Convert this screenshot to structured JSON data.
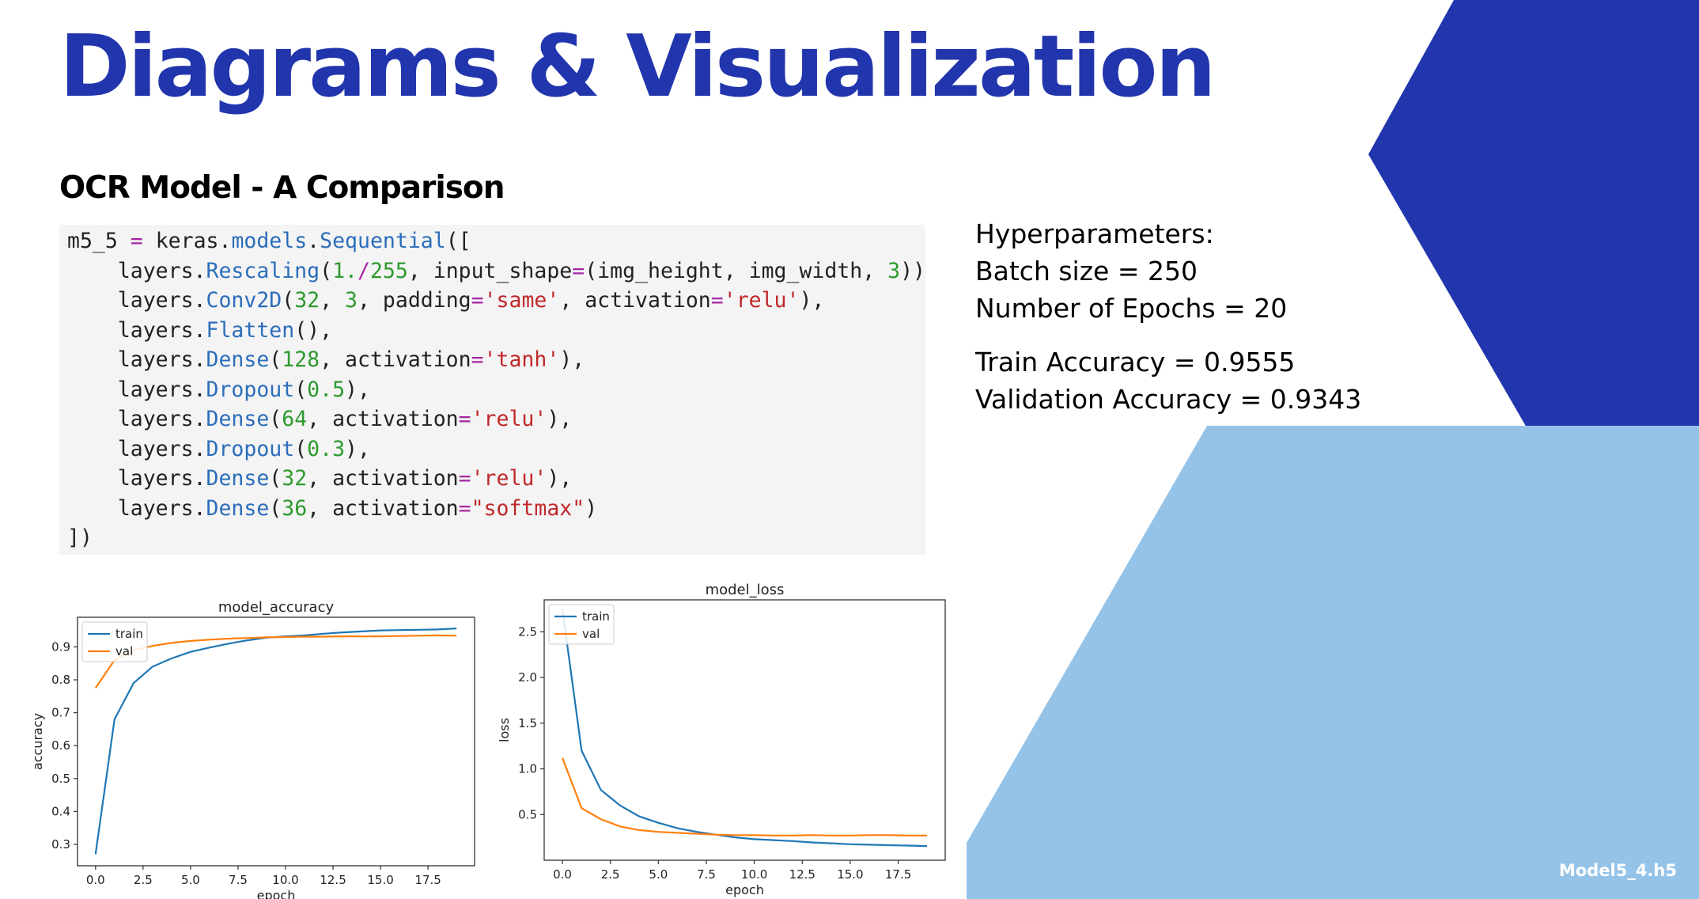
{
  "slide": {
    "title": "Diagrams & Visualization",
    "subtitle": "OCR Model - A Comparison",
    "filename": "Model5_4.h5",
    "colors": {
      "dark_blue": "#2135ad",
      "light_blue": "#95c3e8"
    }
  },
  "code": {
    "lines": [
      [
        {
          "t": "m5_5 ",
          "c": "var"
        },
        {
          "t": "=",
          "c": "op"
        },
        {
          "t": " keras.",
          "c": "mod"
        },
        {
          "t": "models",
          "c": "attr"
        },
        {
          "t": ".",
          "c": "punc"
        },
        {
          "t": "Sequential",
          "c": "attr"
        },
        {
          "t": "([",
          "c": "punc"
        }
      ],
      [
        {
          "t": "    layers.",
          "c": "mod"
        },
        {
          "t": "Rescaling",
          "c": "attr"
        },
        {
          "t": "(",
          "c": "punc"
        },
        {
          "t": "1.",
          "c": "num"
        },
        {
          "t": "/",
          "c": "op"
        },
        {
          "t": "255",
          "c": "num"
        },
        {
          "t": ", input_shape",
          "c": "plain"
        },
        {
          "t": "=",
          "c": "op"
        },
        {
          "t": "(img_height, img_width, ",
          "c": "plain"
        },
        {
          "t": "3",
          "c": "num"
        },
        {
          "t": ")),",
          "c": "punc"
        }
      ],
      [
        {
          "t": "    layers.",
          "c": "mod"
        },
        {
          "t": "Conv2D",
          "c": "attr"
        },
        {
          "t": "(",
          "c": "punc"
        },
        {
          "t": "32",
          "c": "num"
        },
        {
          "t": ", ",
          "c": "plain"
        },
        {
          "t": "3",
          "c": "num"
        },
        {
          "t": ", padding",
          "c": "plain"
        },
        {
          "t": "=",
          "c": "op"
        },
        {
          "t": "'same'",
          "c": "str"
        },
        {
          "t": ", activation",
          "c": "plain"
        },
        {
          "t": "=",
          "c": "op"
        },
        {
          "t": "'relu'",
          "c": "str"
        },
        {
          "t": "),",
          "c": "punc"
        }
      ],
      [
        {
          "t": "    layers.",
          "c": "mod"
        },
        {
          "t": "Flatten",
          "c": "attr"
        },
        {
          "t": "(),",
          "c": "punc"
        }
      ],
      [
        {
          "t": "    layers.",
          "c": "mod"
        },
        {
          "t": "Dense",
          "c": "attr"
        },
        {
          "t": "(",
          "c": "punc"
        },
        {
          "t": "128",
          "c": "num"
        },
        {
          "t": ", activation",
          "c": "plain"
        },
        {
          "t": "=",
          "c": "op"
        },
        {
          "t": "'tanh'",
          "c": "str"
        },
        {
          "t": "),",
          "c": "punc"
        }
      ],
      [
        {
          "t": "    layers.",
          "c": "mod"
        },
        {
          "t": "Dropout",
          "c": "attr"
        },
        {
          "t": "(",
          "c": "punc"
        },
        {
          "t": "0.5",
          "c": "num"
        },
        {
          "t": "),",
          "c": "punc"
        }
      ],
      [
        {
          "t": "    layers.",
          "c": "mod"
        },
        {
          "t": "Dense",
          "c": "attr"
        },
        {
          "t": "(",
          "c": "punc"
        },
        {
          "t": "64",
          "c": "num"
        },
        {
          "t": ", activation",
          "c": "plain"
        },
        {
          "t": "=",
          "c": "op"
        },
        {
          "t": "'relu'",
          "c": "str"
        },
        {
          "t": "),",
          "c": "punc"
        }
      ],
      [
        {
          "t": "    layers.",
          "c": "mod"
        },
        {
          "t": "Dropout",
          "c": "attr"
        },
        {
          "t": "(",
          "c": "punc"
        },
        {
          "t": "0.3",
          "c": "num"
        },
        {
          "t": "),",
          "c": "punc"
        }
      ],
      [
        {
          "t": "    layers.",
          "c": "mod"
        },
        {
          "t": "Dense",
          "c": "attr"
        },
        {
          "t": "(",
          "c": "punc"
        },
        {
          "t": "32",
          "c": "num"
        },
        {
          "t": ", activation",
          "c": "plain"
        },
        {
          "t": "=",
          "c": "op"
        },
        {
          "t": "'relu'",
          "c": "str"
        },
        {
          "t": "),",
          "c": "punc"
        }
      ],
      [
        {
          "t": "    layers.",
          "c": "mod"
        },
        {
          "t": "Dense",
          "c": "attr"
        },
        {
          "t": "(",
          "c": "punc"
        },
        {
          "t": "36",
          "c": "num"
        },
        {
          "t": ", activation",
          "c": "plain"
        },
        {
          "t": "=",
          "c": "op"
        },
        {
          "t": "\"softmax\"",
          "c": "str"
        },
        {
          "t": ")",
          "c": "punc"
        }
      ],
      [
        {
          "t": "])",
          "c": "punc"
        }
      ]
    ]
  },
  "info": {
    "hyperparameters_label": "Hyperparameters:",
    "batch_size": "Batch size = 250",
    "epochs": "Number of Epochs = 20",
    "train_accuracy": "Train Accuracy = 0.9555",
    "val_accuracy": "Validation Accuracy = 0.9343"
  },
  "chart_data": [
    {
      "type": "line",
      "title": "model_accuracy",
      "xlabel": "epoch",
      "ylabel": "accuracy",
      "xlim": [
        -0.95,
        19.95
      ],
      "ylim": [
        0.235,
        0.99
      ],
      "xticks": [
        0.0,
        2.5,
        5.0,
        7.5,
        10.0,
        12.5,
        15.0,
        17.5
      ],
      "xtick_labels": [
        "0.0",
        "2.5",
        "5.0",
        "7.5",
        "10.0",
        "12.5",
        "15.0",
        "17.5"
      ],
      "yticks": [
        0.3,
        0.4,
        0.5,
        0.6,
        0.7,
        0.8,
        0.9
      ],
      "ytick_labels": [
        "0.3",
        "0.4",
        "0.5",
        "0.6",
        "0.7",
        "0.8",
        "0.9"
      ],
      "legend": "upper-left",
      "x": [
        0,
        1,
        2,
        3,
        4,
        5,
        6,
        7,
        8,
        9,
        10,
        11,
        12,
        13,
        14,
        15,
        16,
        17,
        18,
        19
      ],
      "series": [
        {
          "name": "train",
          "color": "#1f77b4",
          "values": [
            0.27,
            0.68,
            0.79,
            0.84,
            0.865,
            0.885,
            0.898,
            0.91,
            0.92,
            0.928,
            0.932,
            0.935,
            0.94,
            0.944,
            0.947,
            0.95,
            0.951,
            0.952,
            0.953,
            0.956
          ]
        },
        {
          "name": "val",
          "color": "#ff7f0e",
          "values": [
            0.775,
            0.86,
            0.89,
            0.903,
            0.912,
            0.918,
            0.922,
            0.925,
            0.927,
            0.929,
            0.93,
            0.931,
            0.931,
            0.932,
            0.932,
            0.932,
            0.933,
            0.934,
            0.935,
            0.934
          ]
        }
      ]
    },
    {
      "type": "line",
      "title": "model_loss",
      "xlabel": "epoch",
      "ylabel": "loss",
      "xlim": [
        -0.95,
        19.95
      ],
      "ylim": [
        0.0,
        2.85
      ],
      "xticks": [
        0.0,
        2.5,
        5.0,
        7.5,
        10.0,
        12.5,
        15.0,
        17.5
      ],
      "xtick_labels": [
        "0.0",
        "2.5",
        "5.0",
        "7.5",
        "10.0",
        "12.5",
        "15.0",
        "17.5"
      ],
      "yticks": [
        0.5,
        1.0,
        1.5,
        2.0,
        2.5
      ],
      "ytick_labels": [
        "0.5",
        "1.0",
        "1.5",
        "2.0",
        "2.5"
      ],
      "legend": "upper-left",
      "x": [
        0,
        1,
        2,
        3,
        4,
        5,
        6,
        7,
        8,
        9,
        10,
        11,
        12,
        13,
        14,
        15,
        16,
        17,
        18,
        19
      ],
      "series": [
        {
          "name": "train",
          "color": "#1f77b4",
          "values": [
            2.75,
            1.2,
            0.77,
            0.6,
            0.48,
            0.41,
            0.35,
            0.31,
            0.28,
            0.25,
            0.23,
            0.22,
            0.21,
            0.195,
            0.185,
            0.175,
            0.17,
            0.165,
            0.16,
            0.155
          ]
        },
        {
          "name": "val",
          "color": "#ff7f0e",
          "values": [
            1.12,
            0.57,
            0.45,
            0.37,
            0.33,
            0.31,
            0.3,
            0.29,
            0.28,
            0.275,
            0.275,
            0.27,
            0.27,
            0.275,
            0.27,
            0.27,
            0.275,
            0.275,
            0.27,
            0.27
          ]
        }
      ]
    }
  ]
}
